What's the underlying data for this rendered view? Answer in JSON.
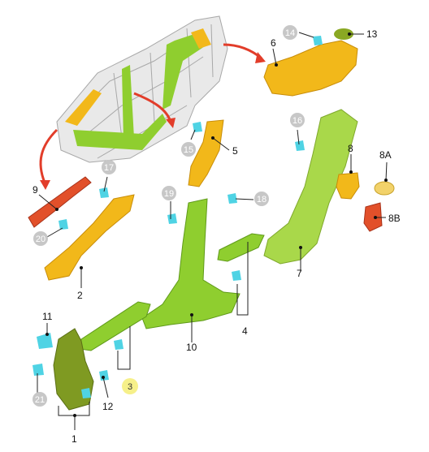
{
  "callouts": {
    "c1": "1",
    "c2": "2",
    "c3": "3",
    "c4": "4",
    "c5": "5",
    "c6": "6",
    "c7": "7",
    "c8": "8",
    "c8a": "8A",
    "c8b": "8B",
    "c9": "9",
    "c10": "10",
    "c11": "11",
    "c12": "12",
    "c13": "13",
    "c14": "14",
    "c15": "15",
    "c16": "16",
    "c17": "17",
    "c18": "18",
    "c19": "19",
    "c20": "20",
    "c21": "21"
  },
  "colors": {
    "yellow_part": "#f2b81a",
    "green_part": "#8fce2f",
    "light_green_part": "#a9d84a",
    "olive_part": "#7f9a22",
    "red_part": "#e2502a",
    "clip_cyan": "#4fd3e4",
    "arrow_red": "#e23d2a",
    "gray_badge": "#c7c7c7",
    "highlight_badge": "#f6f08a"
  }
}
